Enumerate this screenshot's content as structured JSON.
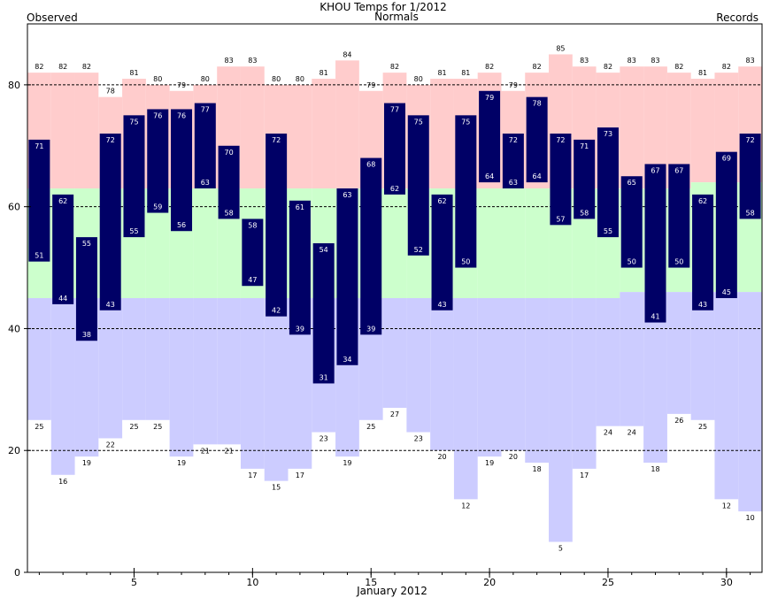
{
  "chart_data": {
    "type": "bar",
    "title": "KHOU Temps for 1/2012",
    "xlabel": "January 2012",
    "ylabel": "",
    "legend": {
      "observed": "Observed",
      "normals": "Normals",
      "records": "Records"
    },
    "xlim": [
      0.5,
      31.5
    ],
    "ylim": [
      0,
      90
    ],
    "x_ticks": [
      5,
      10,
      15,
      20,
      25,
      30
    ],
    "y_ticks": [
      0,
      20,
      40,
      60,
      80
    ],
    "grid_y": [
      20,
      40,
      60,
      80
    ],
    "days": [
      1,
      2,
      3,
      4,
      5,
      6,
      7,
      8,
      9,
      10,
      11,
      12,
      13,
      14,
      15,
      16,
      17,
      18,
      19,
      20,
      21,
      22,
      23,
      24,
      25,
      26,
      27,
      28,
      29,
      30,
      31
    ],
    "observed_high": [
      71,
      62,
      55,
      72,
      75,
      76,
      76,
      77,
      70,
      58,
      72,
      61,
      54,
      63,
      68,
      77,
      75,
      62,
      75,
      79,
      72,
      78,
      72,
      71,
      73,
      65,
      67,
      67,
      62,
      69,
      72
    ],
    "observed_low": [
      51,
      44,
      38,
      43,
      55,
      59,
      56,
      63,
      58,
      47,
      42,
      39,
      31,
      34,
      39,
      62,
      52,
      43,
      50,
      64,
      63,
      64,
      57,
      58,
      55,
      50,
      41,
      50,
      43,
      45,
      58
    ],
    "record_high": [
      82,
      82,
      82,
      78,
      81,
      80,
      79,
      80,
      83,
      83,
      80,
      80,
      81,
      84,
      79,
      82,
      80,
      81,
      81,
      82,
      79,
      82,
      85,
      83,
      82,
      83,
      83,
      82,
      81,
      82,
      83
    ],
    "record_low": [
      25,
      16,
      19,
      22,
      25,
      25,
      19,
      21,
      21,
      17,
      15,
      17,
      23,
      19,
      25,
      27,
      23,
      20,
      12,
      19,
      20,
      18,
      5,
      17,
      24,
      24,
      18,
      26,
      25,
      12,
      10
    ],
    "normal_high": [
      63,
      63,
      63,
      63,
      63,
      63,
      63,
      63,
      63,
      63,
      63,
      63,
      63,
      63,
      63,
      63,
      63,
      63,
      63,
      63,
      63,
      63,
      63,
      63,
      63,
      63,
      63,
      63,
      64,
      64,
      64
    ],
    "normal_low": [
      45,
      45,
      45,
      45,
      45,
      45,
      45,
      45,
      45,
      45,
      45,
      45,
      45,
      45,
      45,
      45,
      45,
      45,
      45,
      45,
      45,
      45,
      45,
      45,
      45,
      46,
      46,
      46,
      46,
      46,
      46
    ],
    "colors": {
      "observed": "#000066",
      "record_band": "#ffcccc",
      "normal_band": "#ccffcc",
      "low_band": "#ccccff",
      "normals_text": "#006600",
      "records_text": "#cc66cc",
      "observed_text": "#000066"
    }
  }
}
